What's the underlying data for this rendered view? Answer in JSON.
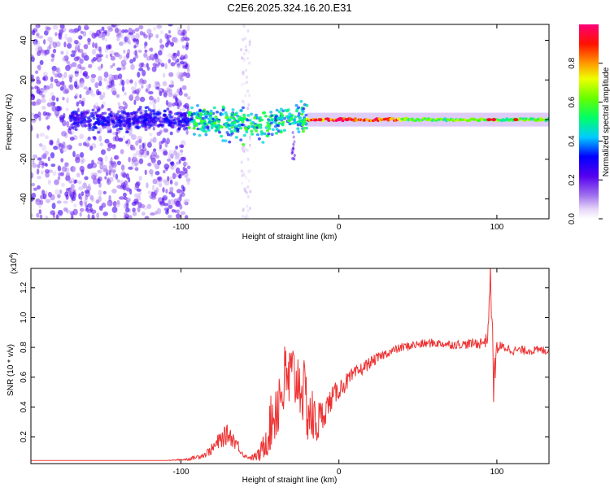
{
  "title": "C2E6.2025.324.16.20.E31",
  "chart_data": [
    {
      "type": "heatmap",
      "title": "C2E6.2025.324.16.20.E31",
      "xlabel": "Height of straight line (km)",
      "ylabel": "Frequency (Hz)",
      "xlim": [
        -195,
        133
      ],
      "ylim": [
        -50,
        48
      ],
      "x_ticks": [
        -100,
        0,
        100
      ],
      "x_tick_labels": [
        "-100",
        "0",
        "100"
      ],
      "y_ticks": [
        -40,
        -20,
        0,
        20,
        40
      ],
      "y_tick_labels": [
        "-40",
        "-20",
        "0",
        "20",
        "40"
      ],
      "description_regions": [
        {
          "x_range": [
            -195,
            -95
          ],
          "note": "broadband noise, low amplitude 0.1-0.3"
        },
        {
          "x_range": [
            -95,
            -20
          ],
          "note": "band near 0 Hz widening, amplitude 0.3-0.6, spread up to about -15 Hz"
        },
        {
          "x_range": [
            -20,
            133
          ],
          "note": "narrow line at 0 Hz, amplitude 0.6-1.0"
        }
      ],
      "colorbar": {
        "label": "Normalized spectral amplitude",
        "range": [
          0.0,
          1.0
        ],
        "ticks": [
          0.0,
          0.2,
          0.4,
          0.6,
          0.8
        ],
        "tick_labels": [
          "0.0",
          "0.2",
          "0.4",
          "0.6",
          "0.8"
        ]
      }
    },
    {
      "type": "line",
      "xlabel": "Height of straight line (km)",
      "ylabel": "SNR (10 * v/v)",
      "y_multiplier_label": "(x10",
      "y_multiplier_exp": "4",
      "xlim": [
        -195,
        133
      ],
      "ylim": [
        0.02,
        1.33
      ],
      "x_ticks": [
        -100,
        0,
        100
      ],
      "x_tick_labels": [
        "-100",
        "0",
        "100"
      ],
      "y_ticks": [
        0.2,
        0.4,
        0.6,
        0.8,
        1.0,
        1.2
      ],
      "y_tick_labels": [
        "0.2",
        "0.4",
        "0.6",
        "0.8",
        "1.0",
        "1.2"
      ],
      "series_color": "#ee3333",
      "series": [
        {
          "name": "SNR",
          "x": [
            -195,
            -170,
            -140,
            -110,
            -95,
            -85,
            -80,
            -75,
            -70,
            -65,
            -60,
            -55,
            -50,
            -45,
            -40,
            -35,
            -30,
            -25,
            -20,
            -15,
            -10,
            -5,
            0,
            10,
            20,
            30,
            40,
            50,
            60,
            70,
            80,
            90,
            94,
            96,
            98,
            100,
            105,
            110,
            120,
            133
          ],
          "y": [
            0.04,
            0.04,
            0.04,
            0.04,
            0.05,
            0.08,
            0.12,
            0.18,
            0.22,
            0.16,
            0.07,
            0.06,
            0.08,
            0.22,
            0.4,
            0.55,
            0.6,
            0.58,
            0.4,
            0.28,
            0.35,
            0.45,
            0.52,
            0.62,
            0.7,
            0.76,
            0.8,
            0.82,
            0.83,
            0.82,
            0.82,
            0.83,
            0.85,
            1.3,
            0.55,
            0.8,
            0.8,
            0.78,
            0.78,
            0.78
          ],
          "jitter": [
            0,
            0,
            0,
            0,
            0.01,
            0.02,
            0.04,
            0.06,
            0.07,
            0.05,
            0.01,
            0.02,
            0.05,
            0.15,
            0.25,
            0.28,
            0.25,
            0.22,
            0.25,
            0.18,
            0.1,
            0.08,
            0.07,
            0.05,
            0.04,
            0.03,
            0.03,
            0.03,
            0.03,
            0.03,
            0.03,
            0.04,
            0.05,
            0.1,
            0.15,
            0.05,
            0.03,
            0.03,
            0.03,
            0.03
          ]
        }
      ]
    }
  ]
}
